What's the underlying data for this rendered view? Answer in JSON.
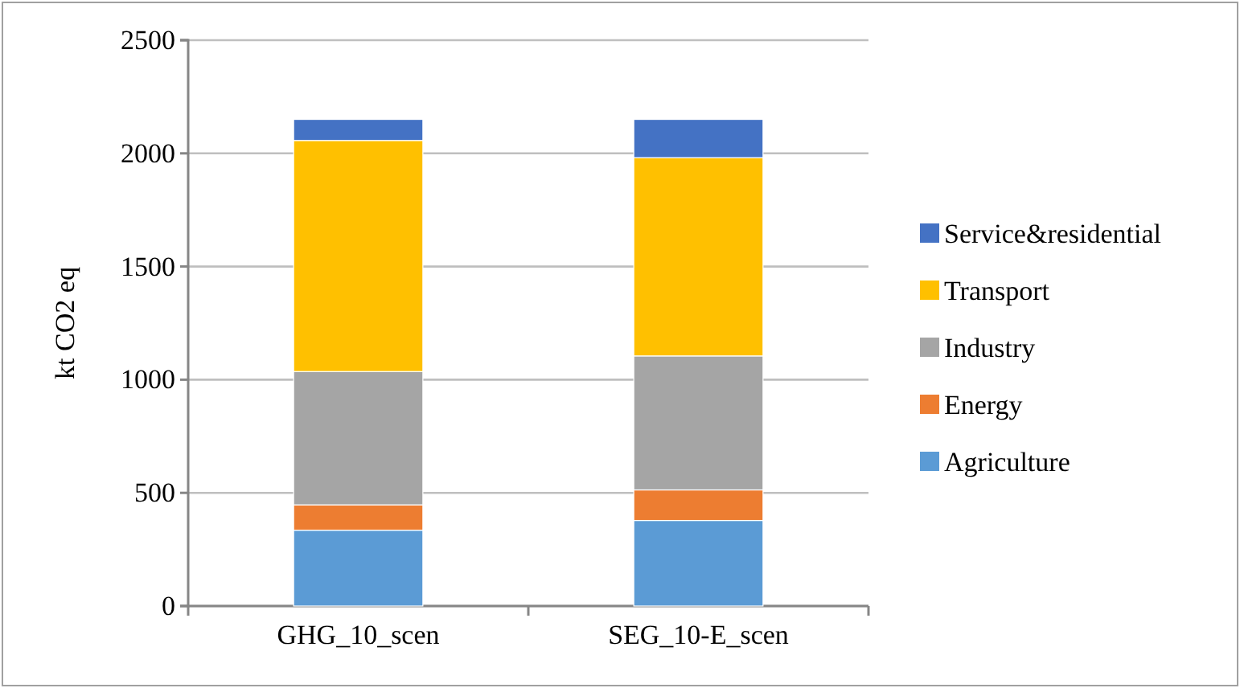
{
  "chart_data": {
    "type": "bar",
    "stacked": true,
    "ylabel": "kt CO2 eq",
    "categories": [
      "GHG_10_scen",
      "SEG_10-E_scen"
    ],
    "series": [
      {
        "name": "Agriculture",
        "color": "#5b9bd5",
        "values": [
          335,
          378
        ]
      },
      {
        "name": "Energy",
        "color": "#ed7d31",
        "values": [
          112,
          135
        ]
      },
      {
        "name": "Industry",
        "color": "#a5a5a5",
        "values": [
          589,
          592
        ]
      },
      {
        "name": "Transport",
        "color": "#ffc000",
        "values": [
          1021,
          876
        ]
      },
      {
        "name": "Service&residential",
        "color": "#4472c4",
        "values": [
          93,
          169
        ]
      }
    ],
    "ylim": [
      0,
      2500
    ],
    "yticks": [
      0,
      500,
      1000,
      1500,
      2000,
      2500
    ],
    "grid": "y",
    "legend": "right"
  }
}
